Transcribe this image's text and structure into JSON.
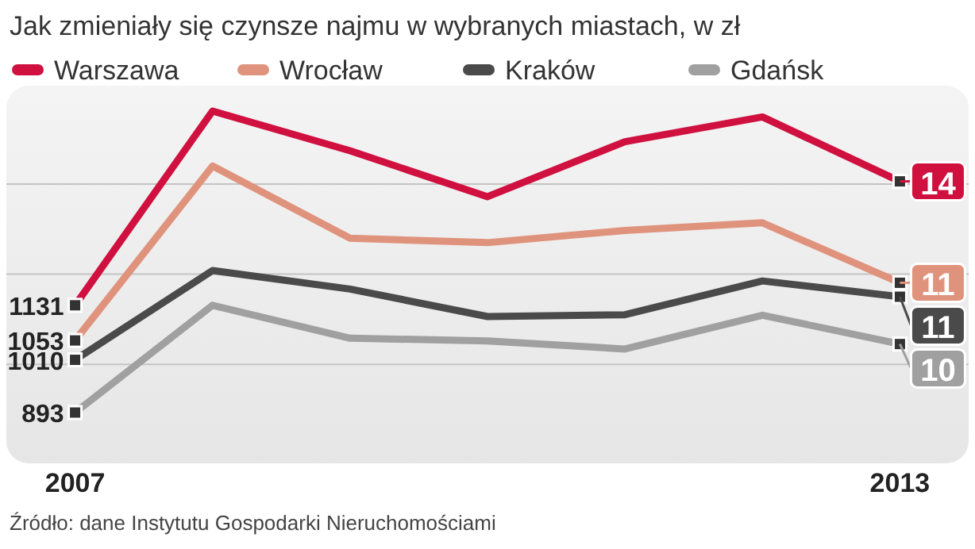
{
  "chart_data": {
    "type": "line",
    "title": "Jak zmieniały się czynsze najmu w wybranych miastach, w zł",
    "x": [
      2007,
      2008,
      2009,
      2010,
      2011,
      2012,
      2013
    ],
    "series": [
      {
        "name": "Warszawa",
        "color": "#d0103f",
        "values": [
          1131,
          1562,
          1474,
          1372,
          1494,
          1549,
          1406
        ],
        "value_labels": [
          "1131",
          null,
          null,
          null,
          null,
          null,
          null
        ]
      },
      {
        "name": "Wrocław",
        "color": "#e0937c",
        "values": [
          1053,
          1440,
          1280,
          1270,
          1297,
          1314,
          1181
        ],
        "value_labels": [
          "1053",
          null,
          null,
          null,
          null,
          null,
          null
        ]
      },
      {
        "name": "Kraków",
        "color": "#4a4a4a",
        "values": [
          1010,
          1208,
          1167,
          1106,
          1110,
          1185,
          1150
        ],
        "value_labels": [
          "1010",
          null,
          null,
          null,
          null,
          null,
          null
        ]
      },
      {
        "name": "Gdańsk",
        "color": "#a0a0a0",
        "values": [
          893,
          1131,
          1058,
          1052,
          1034,
          1109,
          1045
        ],
        "value_labels": [
          "893",
          null,
          null,
          null,
          null,
          null,
          null
        ]
      }
    ],
    "xlim": [
      2006.5,
      2013.5
    ],
    "xticks": [
      2007,
      2013
    ],
    "yticks": [
      {
        "value": 1000,
        "label": null
      },
      {
        "value": 1200,
        "label": null
      },
      {
        "value": 1400,
        "label": null
      }
    ],
    "tick_labels": "x",
    "grid": "y",
    "legend": "top",
    "line_style": "solid",
    "annotations": [
      "14",
      "11",
      "11",
      "10",
      "Źródło: dane Instytutu Gospodarki Nieruchomościami"
    ]
  }
}
